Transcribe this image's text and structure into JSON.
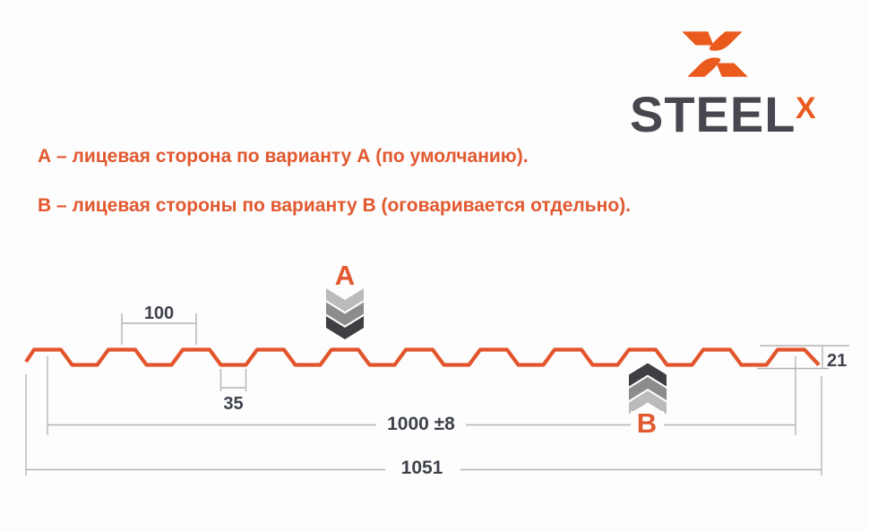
{
  "logo": {
    "word": "STEEL",
    "sup_x": "X"
  },
  "legend": {
    "line_a": "А – лицевая сторона по варианту А (по умолчанию).",
    "line_b": "В – лицевая стороны по варианту В (оговаривается отдельно)."
  },
  "diagram": {
    "marker_a": "А",
    "marker_b": "В",
    "dim_pitch": "100",
    "dim_valley": "35",
    "dim_working_width": "1000 ±8",
    "dim_total_width": "1051",
    "dim_height": "21"
  },
  "colors": {
    "orange": "#e2552c",
    "legend_orange": "#e2582f",
    "logo_orange": "#ea5a1d",
    "steel_text": "#47474f",
    "dim_text": "#3e424a",
    "dim_line": "#b3b3b3",
    "chevron_light": "#babbbd",
    "chevron_mid": "#8b8c8e",
    "chevron_dark": "#3f3e42",
    "background": "#fdfdfd"
  }
}
